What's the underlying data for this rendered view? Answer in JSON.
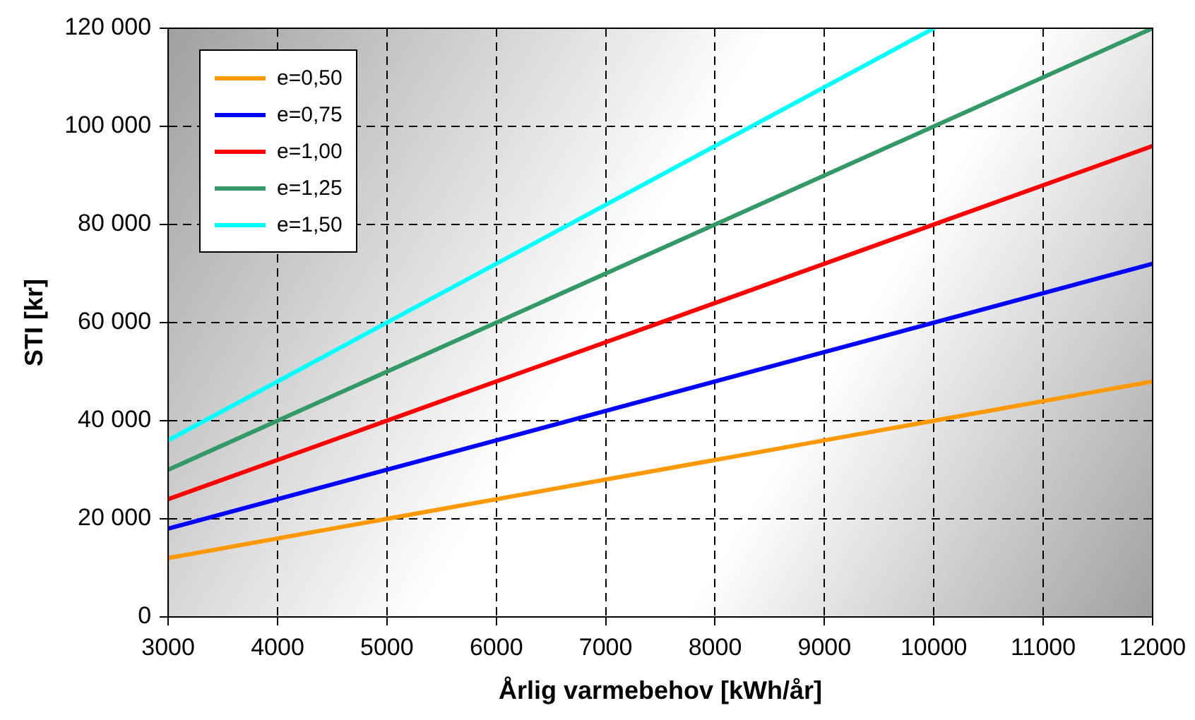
{
  "chart_data": {
    "type": "line",
    "xlabel": "Årlig varmebehov [kWh/år]",
    "ylabel": "STI [kr]",
    "xlim": [
      3000,
      12000
    ],
    "xticks": [
      3000,
      4000,
      5000,
      6000,
      7000,
      8000,
      9000,
      10000,
      11000,
      12000
    ],
    "ylim": [
      0,
      120000
    ],
    "yticks": [
      0,
      {
        "value": 20000,
        "label": "20 000"
      },
      {
        "value": 40000,
        "label": "40 000"
      },
      {
        "value": 60000,
        "label": "60 000"
      },
      {
        "value": 80000,
        "label": "80 000"
      },
      {
        "value": 100000,
        "label": "100 000"
      },
      {
        "value": 120000,
        "label": "120 000"
      }
    ],
    "grid": true,
    "legend": "top left",
    "marker": "none",
    "line_style": "solid",
    "series": [
      {
        "name": "e=0,50",
        "color": "#ff9900",
        "x": [
          3000,
          12000
        ],
        "values": [
          12000,
          48000
        ]
      },
      {
        "name": "e=0,75",
        "color": "#0000ff",
        "x": [
          3000,
          12000
        ],
        "values": [
          18000,
          72000
        ]
      },
      {
        "name": "e=1,00",
        "color": "#ff0000",
        "x": [
          3000,
          12000
        ],
        "values": [
          24000,
          96000
        ]
      },
      {
        "name": "e=1,25",
        "color": "#339966",
        "x": [
          3000,
          12000
        ],
        "values": [
          30000,
          120000
        ]
      },
      {
        "name": "e=1,50",
        "color": "#00ffff",
        "x": [
          3000,
          10000
        ],
        "values": [
          36000,
          120000
        ]
      }
    ]
  }
}
